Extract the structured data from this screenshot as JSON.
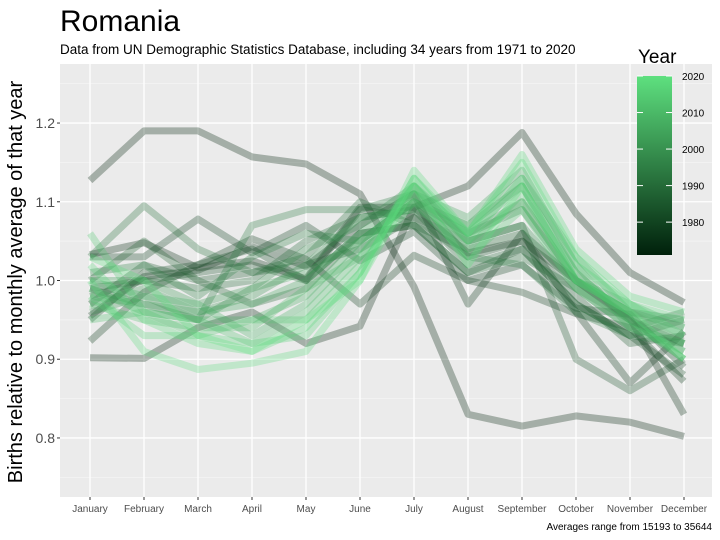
{
  "chart_data": {
    "type": "line",
    "title": "Romania",
    "subtitle": "Data from UN Demographic Statistics Database, including 34 years from 1971 to 2020",
    "xlabel": "",
    "ylabel": "Births relative to monthly average of that year",
    "caption": "Averages range from 15193 to 35644",
    "categories": [
      "January",
      "February",
      "March",
      "April",
      "May",
      "June",
      "July",
      "August",
      "September",
      "October",
      "November",
      "December"
    ],
    "ylim": [
      0.725,
      1.275
    ],
    "yticks": [
      0.8,
      0.9,
      1.0,
      1.1,
      1.2
    ],
    "ytick_labels": [
      "0.8",
      "0.9",
      "1.0",
      "1.1",
      "1.2"
    ],
    "grid": true,
    "legend": {
      "title": "Year",
      "placement": "right",
      "range": [
        1971,
        2020
      ],
      "ticks": [
        1980,
        1990,
        2000,
        2010,
        2020
      ],
      "tick_labels": [
        "1980",
        "1990",
        "2000",
        "2010",
        "2020"
      ],
      "color_low": "#00200b",
      "color_high": "#5ee07f"
    },
    "series": [
      {
        "year": 1971,
        "values": [
          1.127,
          1.19,
          1.19,
          1.157,
          1.148,
          1.11,
          0.992,
          0.83,
          0.815,
          0.828,
          0.82,
          0.802
        ]
      },
      {
        "year": 1972,
        "values": [
          0.902,
          0.901,
          0.94,
          0.96,
          0.92,
          0.942,
          1.093,
          1.12,
          1.188,
          1.085,
          1.01,
          0.972
        ]
      },
      {
        "year": 1974,
        "values": [
          1.033,
          1.048,
          1.016,
          1.025,
          1.002,
          1.093,
          1.093,
          1.035,
          1.05,
          1.0,
          0.952,
          0.83
        ]
      },
      {
        "year": 1976,
        "values": [
          0.955,
          1.005,
          1.013,
          1.043,
          1.018,
          1.07,
          1.11,
          0.97,
          1.06,
          0.96,
          0.87,
          0.935
        ]
      },
      {
        "year": 1978,
        "values": [
          0.923,
          0.985,
          1.02,
          1.053,
          1.027,
          0.97,
          1.032,
          1.0,
          0.985,
          0.958,
          0.94,
          0.872
        ]
      },
      {
        "year": 1980,
        "values": [
          1.03,
          1.03,
          1.078,
          1.035,
          1.07,
          1.025,
          1.062,
          1.0,
          1.02,
          0.965,
          0.957,
          0.89
        ]
      },
      {
        "year": 1982,
        "values": [
          0.95,
          1.01,
          1.02,
          1.04,
          1.0,
          1.06,
          1.07,
          1.01,
          1.04,
          0.97,
          0.93,
          0.88
        ]
      },
      {
        "year": 1984,
        "values": [
          0.99,
          1.0,
          1.01,
          1.02,
          1.0,
          1.09,
          1.08,
          1.05,
          1.07,
          0.9,
          0.86,
          0.9
        ]
      },
      {
        "year": 1986,
        "values": [
          0.97,
          1.02,
          1.0,
          1.01,
          1.02,
          1.04,
          1.08,
          1.03,
          1.05,
          0.98,
          0.92,
          0.93
        ]
      },
      {
        "year": 1988,
        "values": [
          1.0,
          1.05,
          1.0,
          0.97,
          0.99,
          1.06,
          1.07,
          1.04,
          1.06,
          1.0,
          0.95,
          0.92
        ]
      },
      {
        "year": 1990,
        "values": [
          0.98,
          1.0,
          0.99,
          1.0,
          1.05,
          1.08,
          1.09,
          1.02,
          1.04,
          0.97,
          0.93,
          0.95
        ]
      },
      {
        "year": 1992,
        "values": [
          1.03,
          1.095,
          1.04,
          1.01,
          1.03,
          1.1,
          1.07,
          1.01,
          1.03,
          0.99,
          0.94,
          0.96
        ]
      },
      {
        "year": 1994,
        "values": [
          0.99,
          0.97,
          0.95,
          1.07,
          1.09,
          1.09,
          1.11,
          1.03,
          1.02,
          0.96,
          0.93,
          0.92
        ]
      },
      {
        "year": 1996,
        "values": [
          1.01,
          1.02,
          0.98,
          1.03,
          1.06,
          1.05,
          1.1,
          1.06,
          1.09,
          1.0,
          0.96,
          0.95
        ]
      },
      {
        "year": 1998,
        "values": [
          0.96,
          0.98,
          0.95,
          0.99,
          1.04,
          1.07,
          1.12,
          1.05,
          1.07,
          0.99,
          0.95,
          0.91
        ]
      },
      {
        "year": 2000,
        "values": [
          0.97,
          0.99,
          0.96,
          0.98,
          1.02,
          1.08,
          1.09,
          1.06,
          1.1,
          1.0,
          0.96,
          0.94
        ]
      },
      {
        "year": 2002,
        "values": [
          1.0,
          1.0,
          0.97,
          0.99,
          1.01,
          1.05,
          1.1,
          1.07,
          1.12,
          1.01,
          0.95,
          0.9
        ]
      },
      {
        "year": 2004,
        "values": [
          0.98,
          0.97,
          0.96,
          0.97,
          1.0,
          1.06,
          1.11,
          1.08,
          1.14,
          1.02,
          0.94,
          0.92
        ]
      },
      {
        "year": 2006,
        "values": [
          0.99,
          0.96,
          0.95,
          0.95,
          0.98,
          1.05,
          1.1,
          1.07,
          1.13,
          1.03,
          0.96,
          0.93
        ]
      },
      {
        "year": 2008,
        "values": [
          1.0,
          0.98,
          0.97,
          0.93,
          0.97,
          1.04,
          1.12,
          1.06,
          1.12,
          1.0,
          0.97,
          0.94
        ]
      },
      {
        "year": 2010,
        "values": [
          0.97,
          0.95,
          0.94,
          0.94,
          0.99,
          1.03,
          1.11,
          1.05,
          1.1,
          1.0,
          0.96,
          0.92
        ]
      },
      {
        "year": 2012,
        "values": [
          0.95,
          0.96,
          0.95,
          0.92,
          0.96,
          1.03,
          1.12,
          1.04,
          1.11,
          1.01,
          0.95,
          0.9
        ]
      },
      {
        "year": 2014,
        "values": [
          1.06,
          0.96,
          0.93,
          0.95,
          0.95,
          1.02,
          1.1,
          1.03,
          1.09,
          0.99,
          0.94,
          0.91
        ]
      },
      {
        "year": 2016,
        "values": [
          0.98,
          0.93,
          0.93,
          0.92,
          0.93,
          1.01,
          1.13,
          1.05,
          1.13,
          1.02,
          0.97,
          0.93
        ]
      },
      {
        "year": 2018,
        "values": [
          1.02,
          0.95,
          0.92,
          0.91,
          0.94,
          1.01,
          1.13,
          1.06,
          1.16,
          1.04,
          0.98,
          0.96
        ]
      },
      {
        "year": 2019,
        "values": [
          1.0,
          0.91,
          0.887,
          0.895,
          0.91,
          1.0,
          1.14,
          1.06,
          1.15,
          1.03,
          0.97,
          0.95
        ]
      },
      {
        "year": 2020,
        "values": [
          1.03,
          1.0,
          0.93,
          0.91,
          0.95,
          1.0,
          1.12,
          1.02,
          1.12,
          1.0,
          0.96,
          0.9
        ]
      }
    ]
  }
}
